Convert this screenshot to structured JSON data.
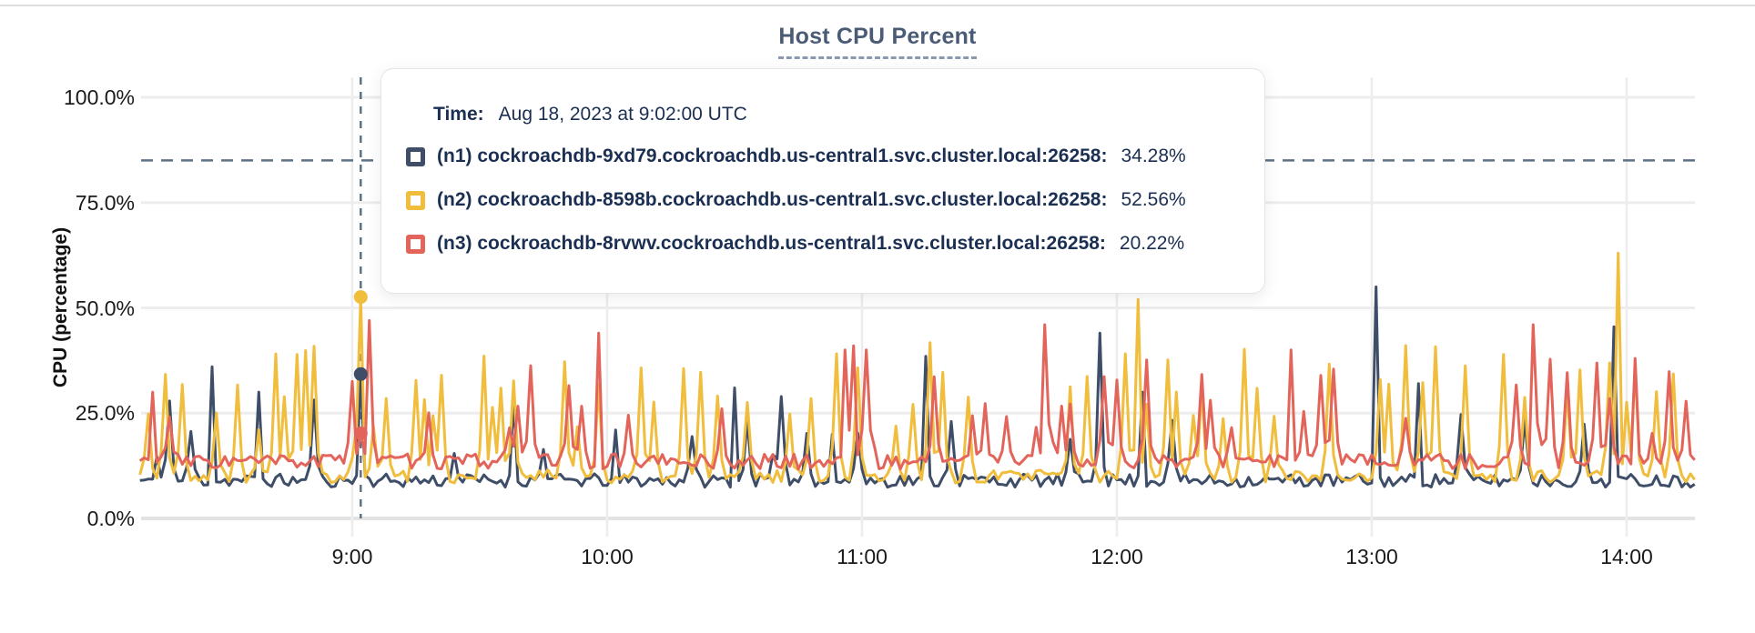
{
  "page": {
    "title": "Host CPU Percent"
  },
  "colors": {
    "n1_navy": "#3f4e68",
    "n2_yellow": "#f0bd3c",
    "n3_red": "#e2645a",
    "guide_dashed": "#5d7285",
    "grid": "#ededed",
    "grid_zero": "#e3e3e3",
    "title_text": "#4a5b76",
    "tooltip_text": "#1b2f52"
  },
  "tooltip": {
    "time_label": "Time:",
    "time_value": "Aug 18, 2023 at 9:02:00 UTC",
    "rows": [
      {
        "label": "(n1) cockroachdb-9xd79.cockroachdb.us-central1.svc.cluster.local:26258:",
        "value": "34.28%",
        "color": "#3f4e68"
      },
      {
        "label": "(n2) cockroachdb-8598b.cockroachdb.us-central1.svc.cluster.local:26258:",
        "value": "52.56%",
        "color": "#f0bd3c"
      },
      {
        "label": "(n3) cockroachdb-8rvwv.cockroachdb.us-central1.svc.cluster.local:26258:",
        "value": "20.22%",
        "color": "#e2645a"
      }
    ]
  },
  "chart_data": {
    "type": "line",
    "title": "Host CPU Percent",
    "xlabel": "",
    "ylabel": "CPU (percentage)",
    "ylim": [
      0,
      100
    ],
    "grid": true,
    "legend_position": "hover-tooltip",
    "yticks": [
      {
        "label": "100.0%",
        "value": 100
      },
      {
        "label": "75.0%",
        "value": 75
      },
      {
        "label": "50.0%",
        "value": 50
      },
      {
        "label": "25.0%",
        "value": 25
      },
      {
        "label": "0.0%",
        "value": 0
      }
    ],
    "xticks": [
      {
        "label": "9:00",
        "minute": 0
      },
      {
        "label": "10:00",
        "minute": 60
      },
      {
        "label": "11:00",
        "minute": 120
      },
      {
        "label": "12:00",
        "minute": 180
      },
      {
        "label": "13:00",
        "minute": 240
      },
      {
        "label": "14:00",
        "minute": 300
      }
    ],
    "x_window_minutes": [
      -50,
      316
    ],
    "threshold_percent": 85,
    "hover_minute": 2,
    "hover_time": "Aug 18, 2023 at 9:02:00 UTC",
    "series": [
      {
        "id": "n1",
        "label": "(n1) cockroachdb-9xd79.cockroachdb.us-central1.svc.cluster.local:26258:",
        "color": "#3f4e68",
        "hover_value": 34.28,
        "baseline": 9,
        "noise": 1.6,
        "spike_prob": 0.055,
        "spike_min": 14,
        "spike_max": 30,
        "seed": 11,
        "anchor_points": [
          [
            -33,
            36
          ],
          [
            -22,
            30
          ],
          [
            2,
            34.28
          ],
          [
            38,
            28
          ],
          [
            62,
            21
          ],
          [
            90,
            31
          ],
          [
            113,
            20
          ],
          [
            135,
            38.5
          ],
          [
            176,
            44
          ],
          [
            186,
            30
          ],
          [
            241,
            55
          ],
          [
            251,
            32
          ],
          [
            297,
            45.5
          ]
        ]
      },
      {
        "id": "n2",
        "label": "(n2) cockroachdb-8598b.cockroachdb.us-central1.svc.cluster.local:26258:",
        "color": "#f0bd3c",
        "hover_value": 52.56,
        "baseline": 10,
        "noise": 1.6,
        "spike_prob": 0.24,
        "spike_min": 21,
        "spike_max": 42,
        "seed": 22,
        "anchor_points": [
          [
            2,
            52.56
          ],
          [
            185,
            52
          ],
          [
            298,
            63
          ]
        ]
      },
      {
        "id": "n3",
        "label": "(n3) cockroachdb-8rvwv.cockroachdb.us-central1.svc.cluster.local:26258:",
        "color": "#e2645a",
        "hover_value": 20.22,
        "baseline": 13.5,
        "noise": 1.8,
        "spike_prob": 0.12,
        "spike_min": 20,
        "spike_max": 38,
        "seed": 33,
        "anchor_points": [
          [
            -47,
            30
          ],
          [
            2,
            20.22
          ],
          [
            4,
            47
          ],
          [
            58,
            44
          ],
          [
            116,
            40
          ],
          [
            118,
            41
          ],
          [
            121,
            40
          ],
          [
            163,
            46
          ],
          [
            221,
            40
          ],
          [
            278,
            46
          ],
          [
            302,
            38
          ]
        ]
      }
    ]
  }
}
